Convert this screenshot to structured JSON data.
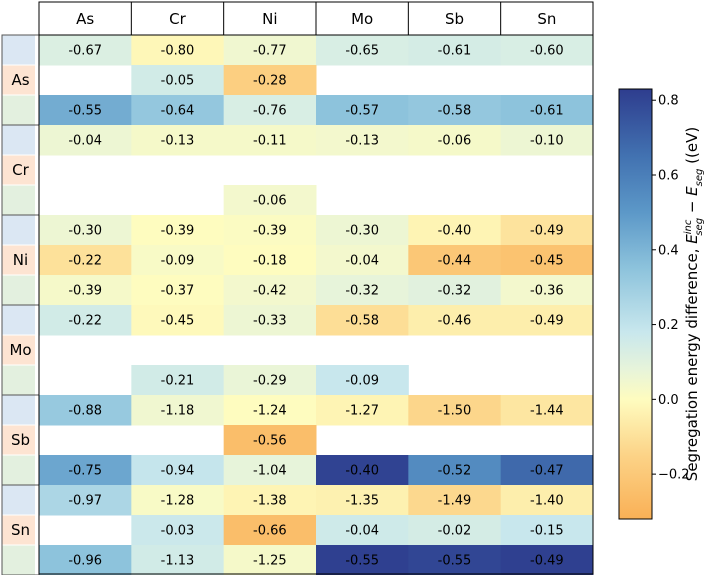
{
  "chart_data": {
    "type": "heatmap",
    "columns": [
      "As",
      "Cr",
      "Ni",
      "Mo",
      "Sb",
      "Sn"
    ],
    "row_groups": [
      "As",
      "Cr",
      "Ni",
      "Mo",
      "Sb",
      "Sn"
    ],
    "rows_per_group": 3,
    "row_marker_colors": [
      "#dbe7f3",
      "#fde4d2",
      "#e3f0df"
    ],
    "values": [
      [
        -0.67,
        -0.8,
        -0.77,
        -0.65,
        -0.61,
        -0.6
      ],
      [
        null,
        -0.05,
        -0.28,
        null,
        null,
        null
      ],
      [
        -0.55,
        -0.64,
        -0.76,
        -0.57,
        -0.58,
        -0.61
      ],
      [
        -0.04,
        -0.13,
        -0.11,
        -0.13,
        -0.06,
        -0.1
      ],
      [
        null,
        null,
        null,
        null,
        null,
        null
      ],
      [
        null,
        null,
        -0.06,
        null,
        null,
        null
      ],
      [
        -0.3,
        -0.39,
        -0.39,
        -0.3,
        -0.4,
        -0.49
      ],
      [
        -0.22,
        -0.09,
        -0.18,
        -0.04,
        -0.44,
        -0.45
      ],
      [
        -0.39,
        -0.37,
        -0.42,
        -0.32,
        -0.32,
        -0.36
      ],
      [
        -0.22,
        -0.45,
        -0.33,
        -0.58,
        -0.46,
        -0.49
      ],
      [
        null,
        null,
        null,
        null,
        null,
        null
      ],
      [
        null,
        -0.21,
        -0.29,
        -0.09,
        null,
        null
      ],
      [
        -0.88,
        -1.18,
        -1.24,
        -1.27,
        -1.5,
        -1.44
      ],
      [
        null,
        null,
        -0.56,
        null,
        null,
        null
      ],
      [
        -0.75,
        -0.94,
        -1.04,
        -0.4,
        -0.52,
        -0.47
      ],
      [
        -0.97,
        -1.28,
        -1.38,
        -1.35,
        -1.49,
        -1.4
      ],
      [
        null,
        -0.03,
        -0.66,
        -0.04,
        -0.02,
        -0.15
      ],
      [
        -0.96,
        -1.13,
        -1.25,
        -0.55,
        -0.55,
        -0.49
      ]
    ],
    "cell_colors": [
      [
        0.12,
        -0.02,
        0.05,
        0.13,
        0.14,
        0.13
      ],
      [
        null,
        0.15,
        -0.17,
        null,
        null,
        null
      ],
      [
        0.43,
        0.33,
        0.13,
        0.35,
        0.33,
        0.35
      ],
      [
        0.06,
        0.03,
        0.03,
        0.04,
        0.03,
        0.06
      ],
      [
        null,
        null,
        null,
        null,
        null,
        null
      ],
      [
        null,
        null,
        0.04,
        null,
        null,
        null
      ],
      [
        0.06,
        0.0,
        0.01,
        0.06,
        -0.03,
        -0.09
      ],
      [
        -0.1,
        0.02,
        0.0,
        0.04,
        -0.21,
        -0.23
      ],
      [
        0.03,
        0.0,
        0.04,
        0.08,
        0.1,
        0.04
      ],
      [
        0.15,
        -0.01,
        0.06,
        -0.11,
        -0.05,
        -0.05
      ],
      [
        null,
        null,
        null,
        null,
        null,
        null
      ],
      [
        null,
        0.15,
        0.07,
        0.18,
        null,
        null
      ],
      [
        0.32,
        0.05,
        0.0,
        -0.03,
        -0.14,
        -0.08
      ],
      [
        null,
        null,
        -0.25,
        null,
        null,
        null
      ],
      [
        0.45,
        0.19,
        0.08,
        0.81,
        0.55,
        0.68
      ],
      [
        0.26,
        0.02,
        -0.03,
        -0.04,
        -0.13,
        -0.05
      ],
      [
        null,
        0.17,
        -0.25,
        0.16,
        0.14,
        0.18
      ],
      [
        0.35,
        0.15,
        0.03,
        0.82,
        0.8,
        0.82
      ]
    ],
    "colorbar": {
      "label_main": "Segregation energy difference, ",
      "label_math_sym": "E",
      "label_sup": "inc",
      "label_sub": "seg",
      "label_minus": " − ",
      "label_tail": ") (eV)",
      "label_open": " (",
      "range": [
        -0.32,
        0.83
      ],
      "ticks": [
        0.8,
        0.6,
        0.4,
        0.2,
        0.0,
        -0.2
      ],
      "tick_labels": [
        "0.8",
        "0.6",
        "0.4",
        "0.2",
        "0.0",
        "−0.2"
      ],
      "stops": [
        {
          "v": -0.32,
          "c": "#f9b056"
        },
        {
          "v": -0.15,
          "c": "#fcd387"
        },
        {
          "v": 0.0,
          "c": "#fefcbf"
        },
        {
          "v": 0.08,
          "c": "#e7f4da"
        },
        {
          "v": 0.18,
          "c": "#c8e7ed"
        },
        {
          "v": 0.35,
          "c": "#8dc3dc"
        },
        {
          "v": 0.5,
          "c": "#5c98c8"
        },
        {
          "v": 0.65,
          "c": "#4272b1"
        },
        {
          "v": 0.83,
          "c": "#2e3d8e"
        }
      ]
    }
  }
}
